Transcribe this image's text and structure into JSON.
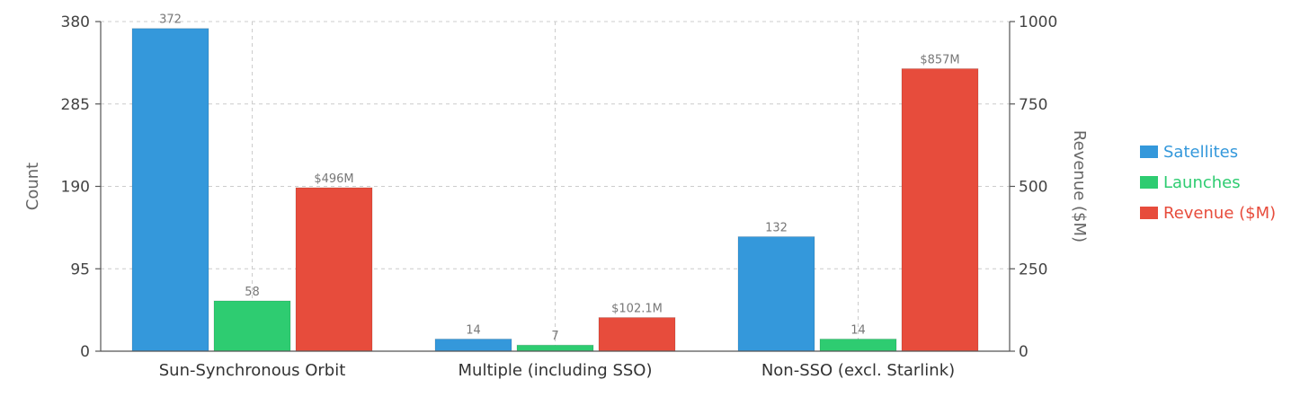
{
  "chart_data": {
    "type": "bar",
    "categories": [
      "Sun-Synchronous Orbit",
      "Multiple (including SSO)",
      "Non-SSO (excl. Starlink)"
    ],
    "series": [
      {
        "name": "Satellites",
        "axis": "left",
        "color": "#3498db",
        "values": [
          372,
          14,
          132
        ],
        "labels": [
          "372",
          "14",
          "132"
        ]
      },
      {
        "name": "Launches",
        "axis": "left",
        "color": "#2ecc71",
        "values": [
          58,
          7,
          14
        ],
        "labels": [
          "58",
          "7",
          "14"
        ]
      },
      {
        "name": "Revenue ($M)",
        "axis": "right",
        "color": "#e74c3c",
        "values": [
          496,
          102.1,
          857
        ],
        "labels": [
          "$496M",
          "$102.1M",
          "$857M"
        ]
      }
    ],
    "ylabel": "Count",
    "y2label": "Revenue ($M)",
    "ylim": [
      0,
      380
    ],
    "y2lim": [
      0,
      1000
    ],
    "yticks": [
      "0",
      "95",
      "190",
      "285",
      "380"
    ],
    "y2ticks": [
      "0",
      "250",
      "500",
      "750",
      "1000"
    ],
    "grid": true,
    "legend_position": "right"
  }
}
